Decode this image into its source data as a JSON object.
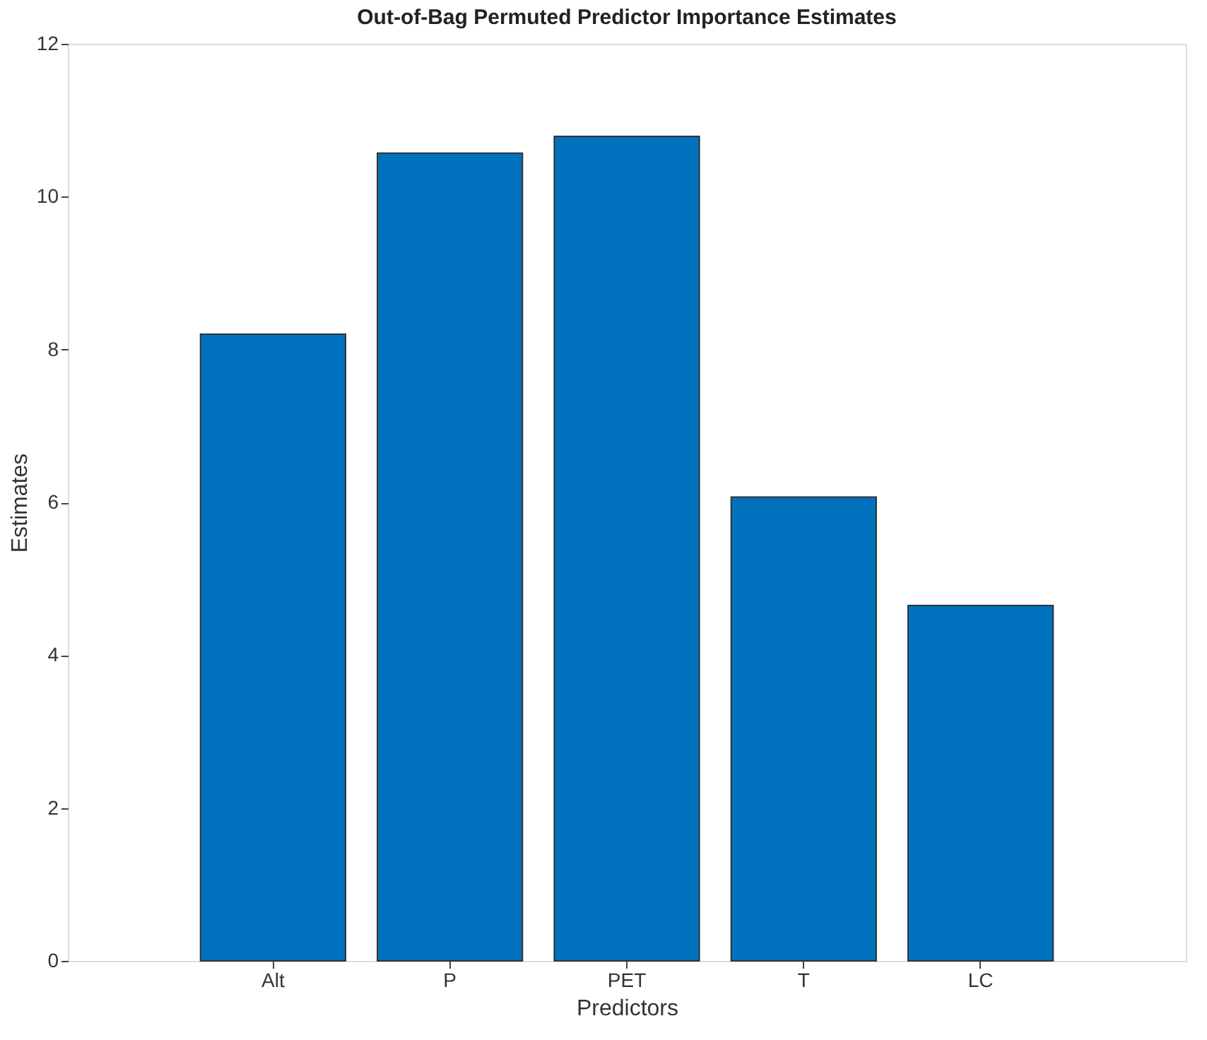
{
  "chart_data": {
    "type": "bar",
    "title": "Out-of-Bag Permuted Predictor Importance Estimates",
    "xlabel": "Predictors",
    "ylabel": "Estimates",
    "categories": [
      "Alt",
      "P",
      "PET",
      "T",
      "LC"
    ],
    "values": [
      8.2,
      10.57,
      10.79,
      6.07,
      4.65
    ],
    "color": "#0072bd",
    "ylim": [
      0,
      12
    ],
    "yticks": [
      0,
      2,
      4,
      6,
      8,
      10,
      12
    ],
    "grid": false
  }
}
